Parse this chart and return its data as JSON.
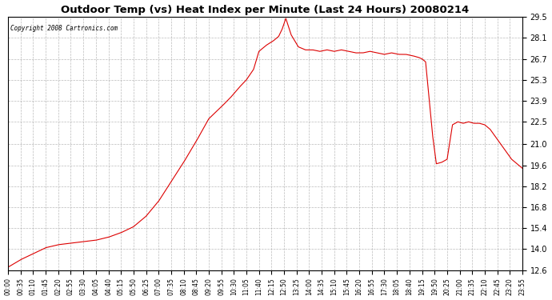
{
  "title": "Outdoor Temp (vs) Heat Index per Minute (Last 24 Hours) 20080214",
  "copyright": "Copyright 2008 Cartronics.com",
  "line_color": "#dd0000",
  "background_color": "#ffffff",
  "grid_color": "#aaaaaa",
  "grid_style": "--",
  "ylim": [
    12.6,
    29.5
  ],
  "yticks": [
    12.6,
    14.0,
    15.4,
    16.8,
    18.2,
    19.6,
    21.0,
    22.5,
    23.9,
    25.3,
    26.7,
    28.1,
    29.5
  ],
  "xtick_labels": [
    "00:00",
    "00:35",
    "01:10",
    "01:45",
    "02:20",
    "02:55",
    "03:30",
    "04:05",
    "04:40",
    "05:15",
    "05:50",
    "06:25",
    "07:00",
    "07:35",
    "08:10",
    "08:45",
    "09:20",
    "09:55",
    "10:30",
    "11:05",
    "11:40",
    "12:15",
    "12:50",
    "13:25",
    "14:00",
    "14:35",
    "15:10",
    "15:45",
    "16:20",
    "16:55",
    "17:30",
    "18:05",
    "18:40",
    "19:15",
    "19:50",
    "20:25",
    "21:00",
    "21:35",
    "22:10",
    "22:45",
    "23:20",
    "23:55"
  ],
  "control_x": [
    0,
    35,
    70,
    105,
    140,
    175,
    210,
    245,
    280,
    315,
    350,
    385,
    420,
    455,
    490,
    525,
    560,
    595,
    620,
    645,
    665,
    685,
    700,
    720,
    740,
    755,
    765,
    775,
    790,
    810,
    830,
    850,
    870,
    890,
    910,
    930,
    950,
    970,
    990,
    1010,
    1030,
    1050,
    1070,
    1090,
    1110,
    1130,
    1145,
    1155,
    1165,
    1175,
    1185,
    1195,
    1210,
    1225,
    1240,
    1255,
    1270,
    1285,
    1300,
    1315,
    1330,
    1345,
    1360,
    1375,
    1390,
    1405,
    1420,
    1435
  ],
  "control_y": [
    12.8,
    13.3,
    13.7,
    14.1,
    14.3,
    14.4,
    14.5,
    14.6,
    14.8,
    15.1,
    15.5,
    16.2,
    17.2,
    18.5,
    19.8,
    21.2,
    22.7,
    23.5,
    24.1,
    24.8,
    25.3,
    26.0,
    27.2,
    27.6,
    27.9,
    28.2,
    28.7,
    29.4,
    28.3,
    27.5,
    27.3,
    27.3,
    27.2,
    27.3,
    27.2,
    27.3,
    27.2,
    27.1,
    27.1,
    27.2,
    27.1,
    27.0,
    27.1,
    27.0,
    27.0,
    26.9,
    26.8,
    26.7,
    26.5,
    24.0,
    21.5,
    19.7,
    19.8,
    20.0,
    22.3,
    22.5,
    22.4,
    22.5,
    22.4,
    22.4,
    22.3,
    22.0,
    21.5,
    21.0,
    20.5,
    20.0,
    19.7,
    19.4
  ]
}
